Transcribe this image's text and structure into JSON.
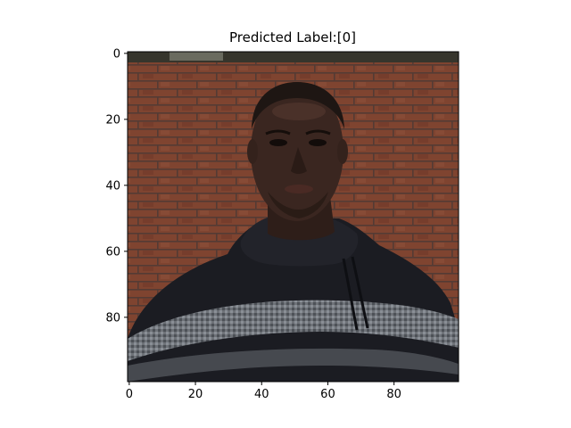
{
  "title": "Predicted Label:[0]",
  "image": {
    "description_free": true,
    "axes": {
      "x_ticks": [
        "0",
        "20",
        "40",
        "60",
        "80"
      ],
      "y_ticks": [
        "0",
        "20",
        "40",
        "60",
        "80"
      ],
      "x_range": [
        -0.5,
        99.5
      ],
      "y_range": [
        -0.5,
        99.5
      ],
      "y_inverted": true
    }
  },
  "colors": {
    "brick": "#8a4a35",
    "mortar": "#5a4a42",
    "skin": "#3a2620",
    "sweater": "#1b1c22",
    "stripe": "#6e7278",
    "axis": "#000000"
  }
}
